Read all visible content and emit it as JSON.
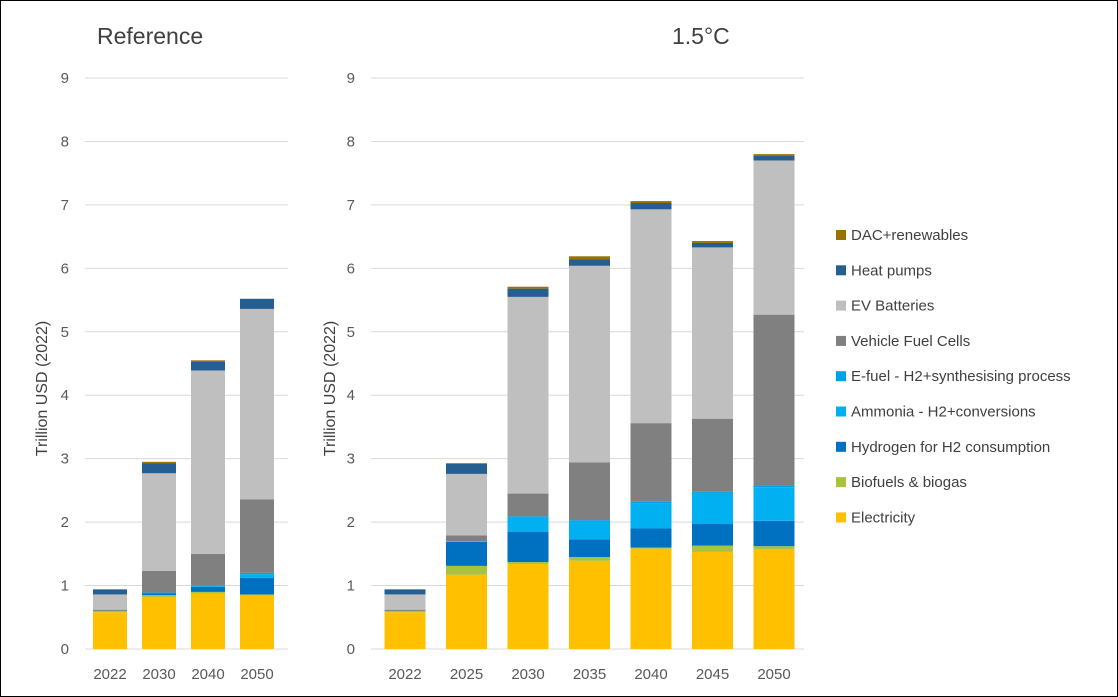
{
  "chart_data": [
    {
      "type": "bar",
      "stacked": true,
      "title": "Reference",
      "ylabel": "Trillion USD (2022)",
      "ylim": [
        0,
        9
      ],
      "yticks": [
        0,
        1,
        2,
        3,
        4,
        5,
        6,
        7,
        8,
        9
      ],
      "grid": true,
      "categories": [
        "2022",
        "2030",
        "2040",
        "2050"
      ],
      "series": [
        {
          "name": "Electricity",
          "color": "#ffc000",
          "values": [
            0.58,
            0.82,
            0.87,
            0.84
          ]
        },
        {
          "name": "Biofuels & biogas",
          "color": "#a9c23f",
          "values": [
            0.02,
            0.03,
            0.03,
            0.02
          ]
        },
        {
          "name": "Hydrogen for H2 consumption",
          "color": "#0070c0",
          "values": [
            0.0,
            0.03,
            0.08,
            0.26
          ]
        },
        {
          "name": "Ammonia - H2+conversions",
          "color": "#00b0f0",
          "values": [
            0.0,
            0.01,
            0.02,
            0.06
          ]
        },
        {
          "name": "E-fuel - H2+synthesising process",
          "color": "#00a0e9",
          "values": [
            0.0,
            0.0,
            0.0,
            0.02
          ]
        },
        {
          "name": "Vehicle Fuel Cells",
          "color": "#808080",
          "values": [
            0.02,
            0.34,
            0.5,
            1.16
          ]
        },
        {
          "name": "EV Batteries",
          "color": "#bfbfbf",
          "values": [
            0.24,
            1.54,
            2.89,
            3.0
          ]
        },
        {
          "name": "Heat pumps",
          "color": "#255e91",
          "values": [
            0.08,
            0.16,
            0.14,
            0.16
          ]
        },
        {
          "name": "DAC+renewables",
          "color": "#997300",
          "values": [
            0.0,
            0.02,
            0.02,
            0.0
          ]
        }
      ]
    },
    {
      "type": "bar",
      "stacked": true,
      "title": "1.5°C",
      "ylabel": "Trillion USD (2022)",
      "ylim": [
        0,
        9
      ],
      "yticks": [
        0,
        1,
        2,
        3,
        4,
        5,
        6,
        7,
        8,
        9
      ],
      "grid": true,
      "categories": [
        "2022",
        "2025",
        "2030",
        "2035",
        "2040",
        "2045",
        "2050"
      ],
      "series": [
        {
          "name": "Electricity",
          "color": "#ffc000",
          "values": [
            0.58,
            1.17,
            1.34,
            1.39,
            1.58,
            1.53,
            1.57
          ]
        },
        {
          "name": "Biofuels & biogas",
          "color": "#a9c23f",
          "values": [
            0.02,
            0.14,
            0.03,
            0.06,
            0.02,
            0.1,
            0.05
          ]
        },
        {
          "name": "Hydrogen for H2 consumption",
          "color": "#0070c0",
          "values": [
            0.0,
            0.38,
            0.48,
            0.28,
            0.3,
            0.34,
            0.4
          ]
        },
        {
          "name": "Ammonia - H2+conversions",
          "color": "#00b0f0",
          "values": [
            0.0,
            0.01,
            0.24,
            0.28,
            0.4,
            0.49,
            0.53
          ]
        },
        {
          "name": "E-fuel - H2+synthesising process",
          "color": "#00a0e9",
          "values": [
            0.0,
            0.0,
            0.0,
            0.02,
            0.02,
            0.02,
            0.02
          ]
        },
        {
          "name": "Vehicle Fuel Cells",
          "color": "#808080",
          "values": [
            0.02,
            0.09,
            0.36,
            0.91,
            1.24,
            1.15,
            2.7
          ]
        },
        {
          "name": "EV Batteries",
          "color": "#bfbfbf",
          "values": [
            0.24,
            0.97,
            3.1,
            3.1,
            3.37,
            2.7,
            2.43
          ]
        },
        {
          "name": "Heat pumps",
          "color": "#255e91",
          "values": [
            0.08,
            0.16,
            0.13,
            0.1,
            0.1,
            0.07,
            0.07
          ]
        },
        {
          "name": "DAC+renewables",
          "color": "#997300",
          "values": [
            0.0,
            0.01,
            0.03,
            0.05,
            0.03,
            0.03,
            0.03
          ]
        }
      ]
    }
  ],
  "legend": {
    "position": "right",
    "items": [
      {
        "name": "DAC+renewables",
        "color": "#997300"
      },
      {
        "name": "Heat pumps",
        "color": "#255e91"
      },
      {
        "name": "EV Batteries",
        "color": "#bfbfbf"
      },
      {
        "name": "Vehicle Fuel Cells",
        "color": "#808080"
      },
      {
        "name": "E-fuel - H2+synthesising process",
        "color": "#00a0e9"
      },
      {
        "name": "Ammonia - H2+conversions",
        "color": "#00b0f0"
      },
      {
        "name": "Hydrogen for H2 consumption",
        "color": "#0070c0"
      },
      {
        "name": "Biofuels & biogas",
        "color": "#a9c23f"
      },
      {
        "name": "Electricity",
        "color": "#ffc000"
      }
    ]
  }
}
